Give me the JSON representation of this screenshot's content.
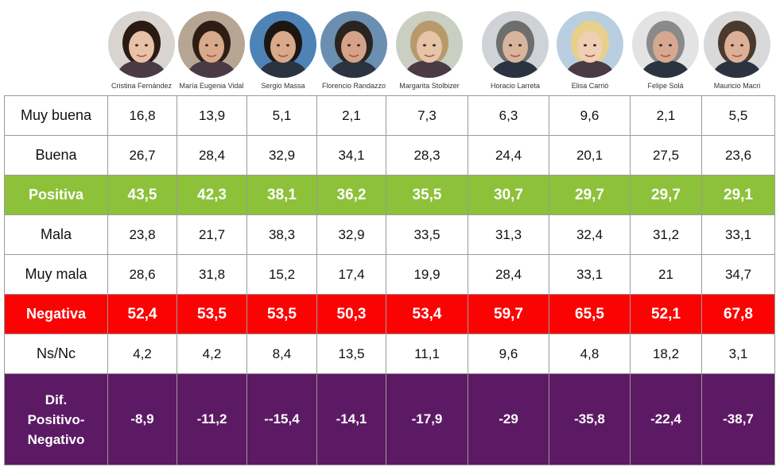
{
  "chart_data": {
    "type": "table",
    "columns": [
      {
        "name": "Cristina Fernández",
        "avatar_icon": "cristina-fernandez-portrait-icon"
      },
      {
        "name": "María Eugenia Vidal",
        "avatar_icon": "maria-eugenia-vidal-portrait-icon"
      },
      {
        "name": "Sergio Massa",
        "avatar_icon": "sergio-massa-portrait-icon"
      },
      {
        "name": "Florencio Randazzo",
        "avatar_icon": "florencio-randazzo-portrait-icon"
      },
      {
        "name": "Margarita Stolbizer",
        "avatar_icon": "margarita-stolbizer-portrait-icon"
      },
      {
        "name": "Horacio Larreta",
        "avatar_icon": "horacio-larreta-portrait-icon"
      },
      {
        "name": "Elisa Carrió",
        "avatar_icon": "elisa-carrio-portrait-icon"
      },
      {
        "name": "Felipe Solá",
        "avatar_icon": "felipe-sola-portrait-icon"
      },
      {
        "name": "Mauricio Macri",
        "avatar_icon": "mauricio-macri-portrait-icon"
      }
    ],
    "rows": [
      {
        "label": "Muy buena",
        "style": "normal",
        "values": [
          "16,8",
          "13,9",
          "5,1",
          "2,1",
          "7,3",
          "6,3",
          "9,6",
          "2,1",
          "5,5"
        ]
      },
      {
        "label": "Buena",
        "style": "normal",
        "values": [
          "26,7",
          "28,4",
          "32,9",
          "34,1",
          "28,3",
          "24,4",
          "20,1",
          "27,5",
          "23,6"
        ]
      },
      {
        "label": "Positiva",
        "style": "positive",
        "values": [
          "43,5",
          "42,3",
          "38,1",
          "36,2",
          "35,5",
          "30,7",
          "29,7",
          "29,7",
          "29,1"
        ]
      },
      {
        "label": "Mala",
        "style": "normal",
        "values": [
          "23,8",
          "21,7",
          "38,3",
          "32,9",
          "33,5",
          "31,3",
          "32,4",
          "31,2",
          "33,1"
        ]
      },
      {
        "label": "Muy mala",
        "style": "normal",
        "values": [
          "28,6",
          "31,8",
          "15,2",
          "17,4",
          "19,9",
          "28,4",
          "33,1",
          "21",
          "34,7"
        ]
      },
      {
        "label": "Negativa",
        "style": "negative",
        "values": [
          "52,4",
          "53,5",
          "53,5",
          "50,3",
          "53,4",
          "59,7",
          "65,5",
          "52,1",
          "67,8"
        ]
      },
      {
        "label": "Ns/Nc",
        "style": "normal",
        "values": [
          "4,2",
          "4,2",
          "8,4",
          "13,5",
          "11,1",
          "9,6",
          "4,8",
          "18,2",
          "3,1"
        ]
      },
      {
        "label_lines": [
          "Dif.",
          "Positivo-",
          "Negativo"
        ],
        "style": "diff",
        "values": [
          "-8,9",
          "-11,2",
          "--15,4",
          "-14,1",
          "-17,9",
          "-29",
          "-35,8",
          "-22,4",
          "-38,7"
        ]
      }
    ]
  },
  "colors": {
    "positive": "#8dc13a",
    "negative": "#fb0303",
    "diff": "#5c1a64",
    "border": "#9a9a9a"
  }
}
